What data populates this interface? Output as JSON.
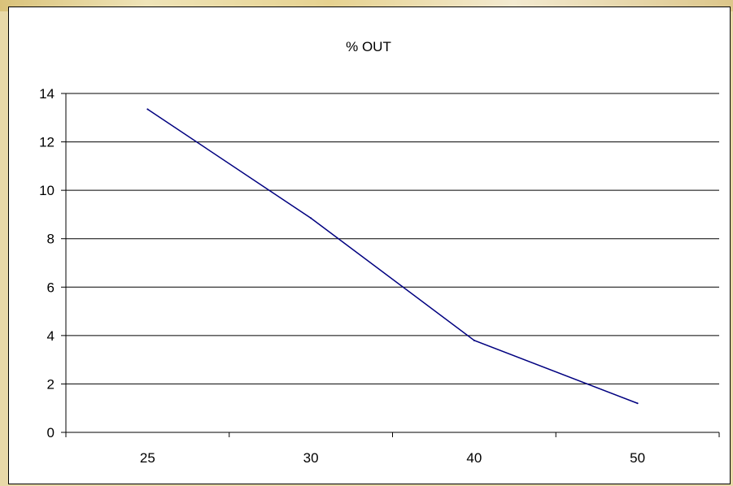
{
  "chart_data": {
    "type": "line",
    "title": "% OUT",
    "categories": [
      "25",
      "30",
      "40",
      "50"
    ],
    "series": [
      {
        "values": [
          13.35,
          8.85,
          3.8,
          1.2
        ],
        "color": "#000080"
      }
    ],
    "ylim": [
      0,
      14
    ],
    "yticks": [
      "0",
      "2",
      "4",
      "6",
      "8",
      "10",
      "12",
      "14"
    ],
    "grid": true,
    "legend": "none"
  }
}
